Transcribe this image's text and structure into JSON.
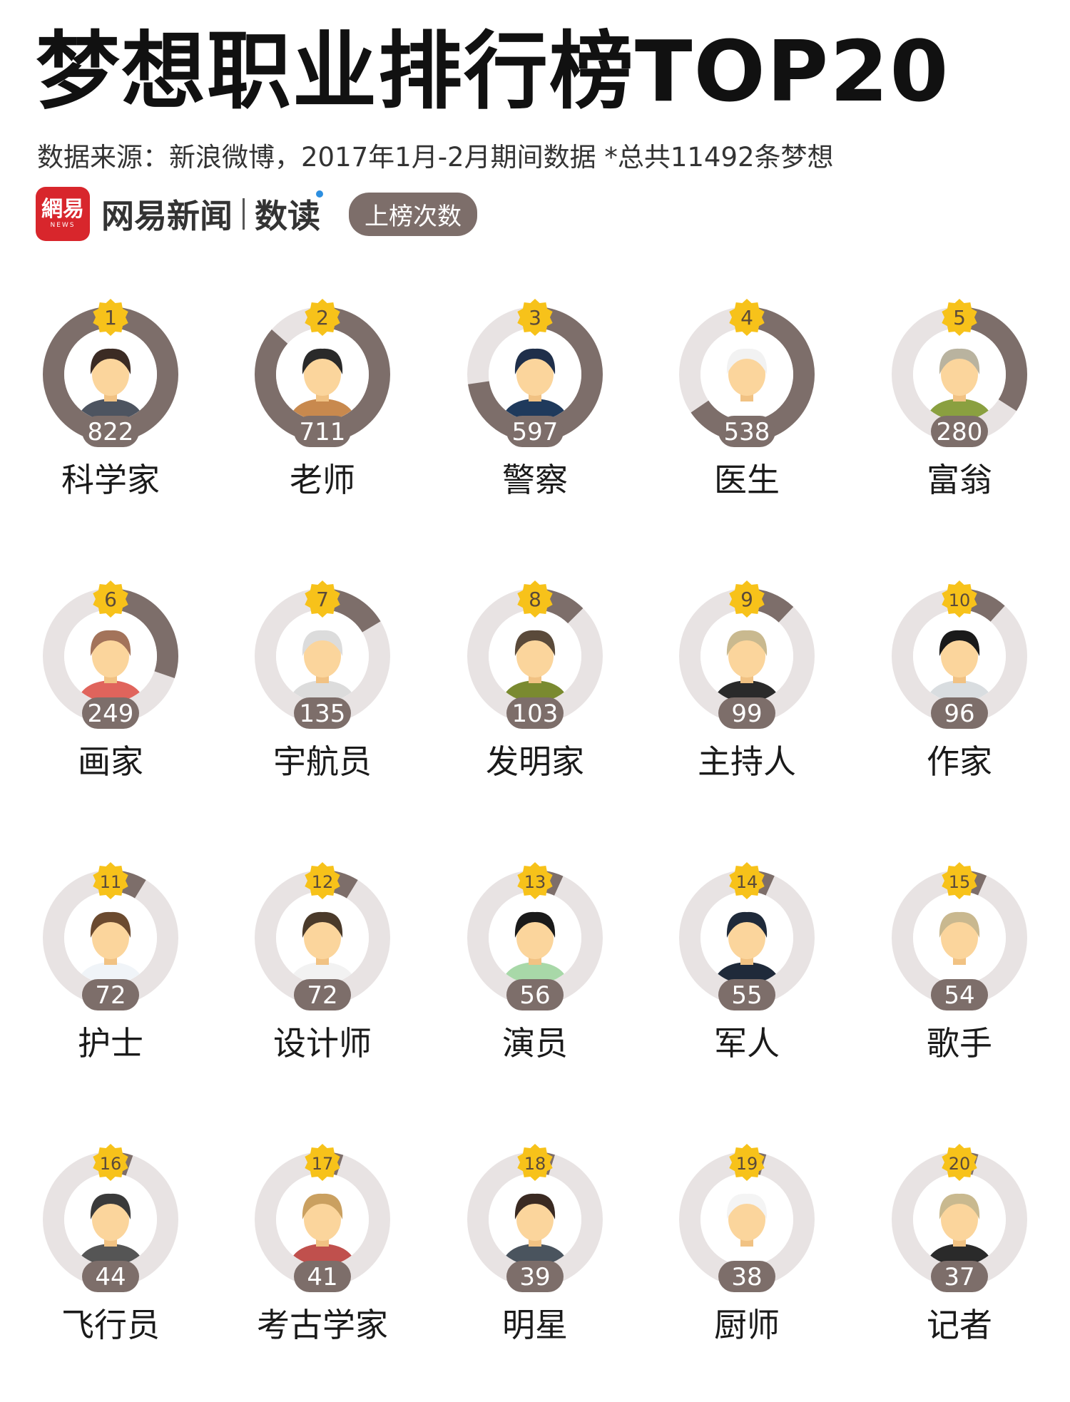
{
  "title": "梦想职业排行榜TOP20",
  "subtitle": "数据来源：新浪微博，2017年1月-2月期间数据   *总共11492条梦想",
  "brand": {
    "logo_text": "網易",
    "logo_sub": "NEWS",
    "name": "网易新闻",
    "read_label": "数读"
  },
  "legend_label": "上榜次数",
  "colors": {
    "ring_track": "#e8e3e3",
    "ring_fill": "#7d6e6a",
    "badge": "#f7c21a",
    "badge_text": "#5a4a3a",
    "count_bg": "#7d6e6a",
    "count_text": "#ffffff"
  },
  "chart_data": {
    "type": "radial-progress",
    "max_value": 822,
    "items": [
      {
        "rank": "1",
        "name": "科学家",
        "value": 822,
        "icon": "scientist-icon"
      },
      {
        "rank": "2",
        "name": "老师",
        "value": 711,
        "icon": "teacher-icon"
      },
      {
        "rank": "3",
        "name": "警察",
        "value": 597,
        "icon": "police-icon"
      },
      {
        "rank": "4",
        "name": "医生",
        "value": 538,
        "icon": "doctor-icon"
      },
      {
        "rank": "5",
        "name": "富翁",
        "value": 280,
        "icon": "rich-person-icon"
      },
      {
        "rank": "6",
        "name": "画家",
        "value": 249,
        "icon": "painter-icon"
      },
      {
        "rank": "7",
        "name": "宇航员",
        "value": 135,
        "icon": "astronaut-icon"
      },
      {
        "rank": "8",
        "name": "发明家",
        "value": 103,
        "icon": "inventor-icon"
      },
      {
        "rank": "9",
        "name": "主持人",
        "value": 99,
        "icon": "host-icon"
      },
      {
        "rank": "10",
        "name": "作家",
        "value": 96,
        "icon": "writer-icon"
      },
      {
        "rank": "11",
        "name": "护士",
        "value": 72,
        "icon": "nurse-icon"
      },
      {
        "rank": "12",
        "name": "设计师",
        "value": 72,
        "icon": "designer-icon"
      },
      {
        "rank": "13",
        "name": "演员",
        "value": 56,
        "icon": "actor-icon"
      },
      {
        "rank": "14",
        "name": "军人",
        "value": 55,
        "icon": "soldier-icon"
      },
      {
        "rank": "15",
        "name": "歌手",
        "value": 54,
        "icon": "singer-icon"
      },
      {
        "rank": "16",
        "name": "飞行员",
        "value": 44,
        "icon": "pilot-icon"
      },
      {
        "rank": "17",
        "name": "考古学家",
        "value": 41,
        "icon": "archaeologist-icon"
      },
      {
        "rank": "18",
        "name": "明星",
        "value": 39,
        "icon": "star-celebrity-icon"
      },
      {
        "rank": "19",
        "name": "厨师",
        "value": 38,
        "icon": "chef-icon"
      },
      {
        "rank": "20",
        "name": "记者",
        "value": 37,
        "icon": "journalist-icon"
      }
    ]
  }
}
